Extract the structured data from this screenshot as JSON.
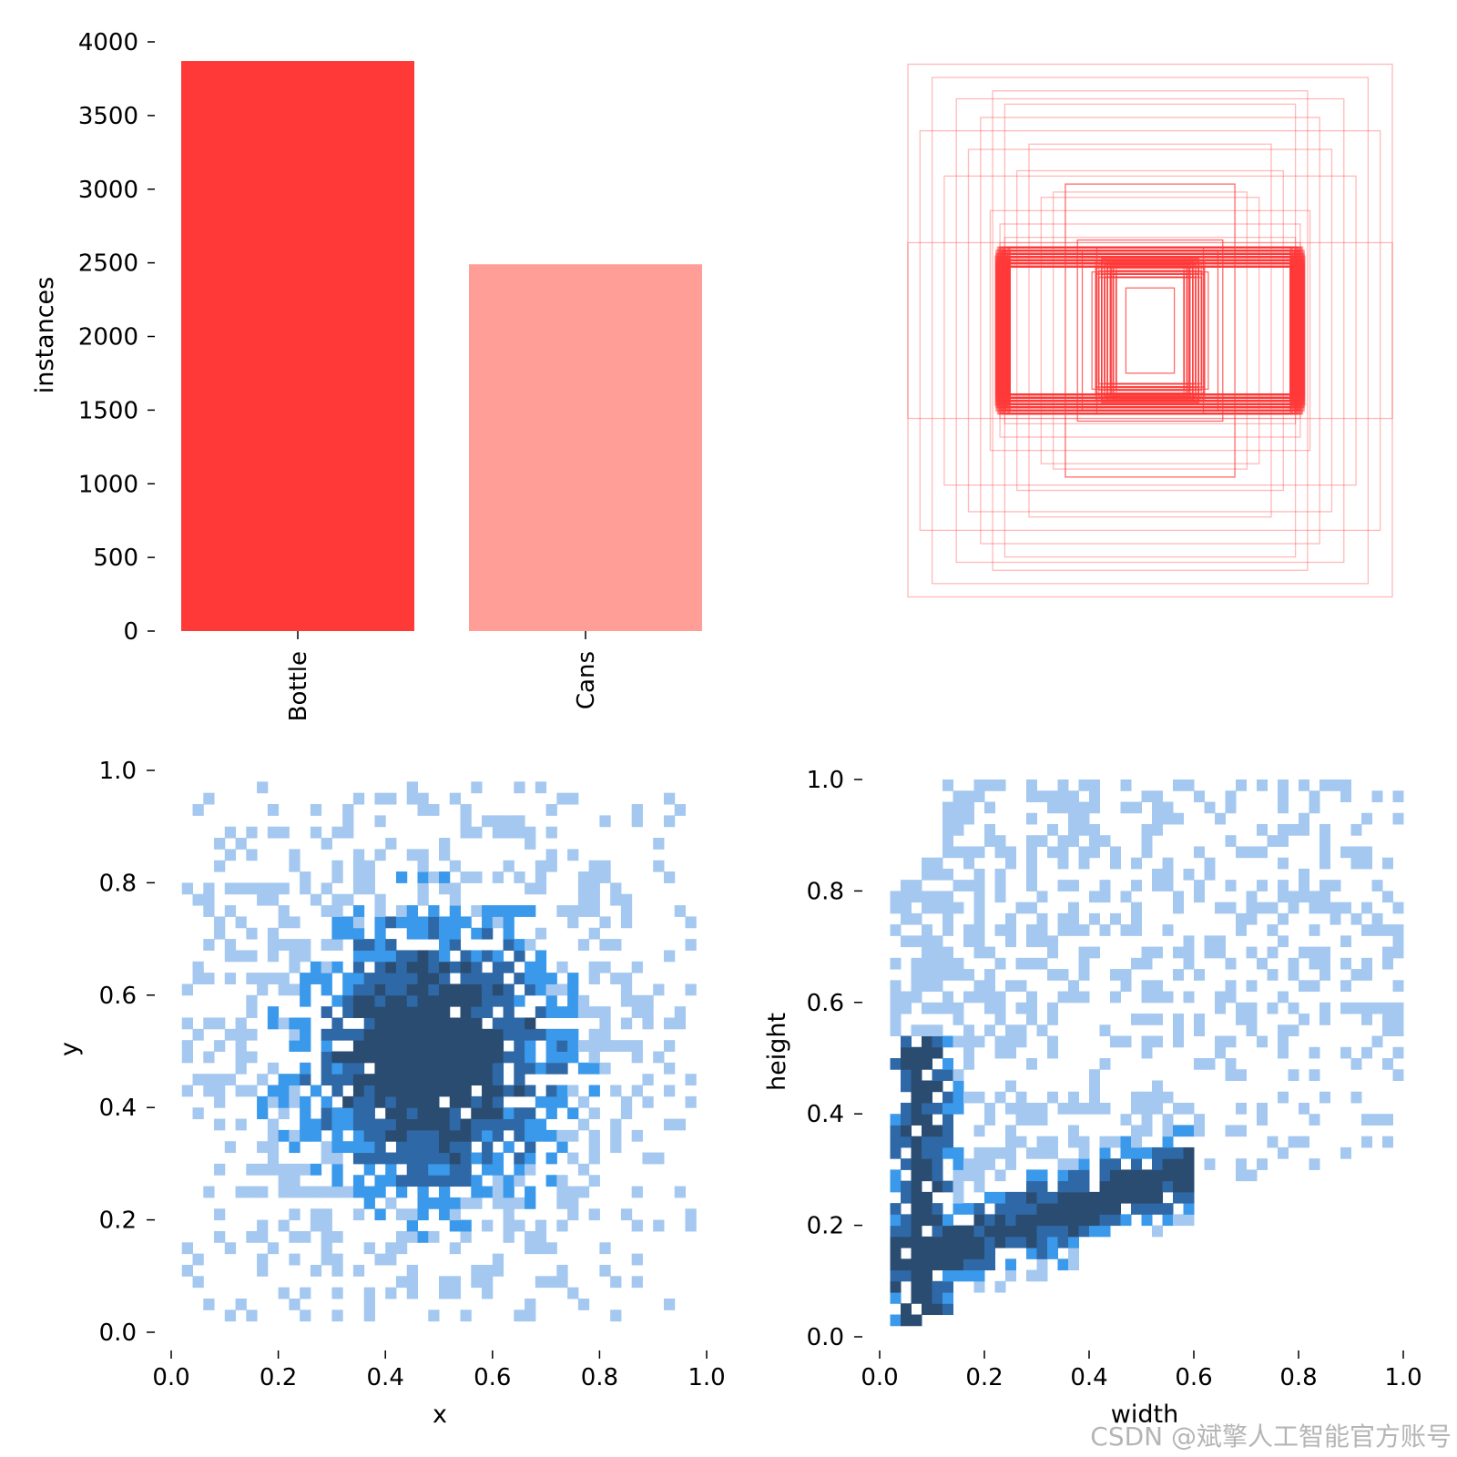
{
  "chart_data": [
    {
      "type": "bar",
      "categories": [
        "Bottle",
        "Cans"
      ],
      "values": [
        3870,
        2490
      ],
      "colors": [
        "#ff3838",
        "#ff9d97"
      ],
      "ylabel": "instances",
      "xlabel": "",
      "ylim": [
        0,
        4000
      ],
      "yticks": [
        0,
        500,
        1000,
        1500,
        2000,
        2500,
        3000,
        3500,
        4000
      ]
    },
    {
      "type": "boxes",
      "color": "#ff3838",
      "boxes_w_h": [
        [
          0.24,
          0.22
        ],
        [
          0.62,
          0.33
        ],
        [
          0.22,
          0.31
        ],
        [
          0.6,
          0.35
        ],
        [
          0.2,
          0.27
        ],
        [
          0.1,
          0.16
        ],
        [
          0.16,
          0.24
        ],
        [
          0.3,
          0.34
        ],
        [
          0.45,
          0.5
        ],
        [
          0.55,
          0.6
        ],
        [
          0.7,
          0.8
        ],
        [
          0.8,
          0.87
        ],
        [
          1.0,
          1.0
        ],
        [
          0.9,
          0.95
        ],
        [
          0.5,
          0.7
        ],
        [
          0.65,
          0.9
        ],
        [
          0.75,
          0.68
        ],
        [
          0.35,
          0.55
        ],
        [
          0.85,
          0.58
        ],
        [
          1.0,
          0.33
        ],
        [
          0.62,
          0.4
        ],
        [
          0.58,
          0.26
        ],
        [
          0.64,
          0.28
        ],
        [
          0.66,
          0.45
        ],
        [
          0.4,
          0.52
        ],
        [
          0.95,
          0.75
        ],
        [
          0.6,
          0.85
        ],
        [
          0.28,
          0.3
        ]
      ]
    },
    {
      "type": "heatmap",
      "xlabel": "x",
      "ylabel": "y",
      "xlim": [
        0,
        1
      ],
      "ylim": [
        0,
        1
      ],
      "xticks": [
        "0.0",
        "0.2",
        "0.4",
        "0.6",
        "0.8",
        "1.0"
      ],
      "yticks": [
        "0.0",
        "0.2",
        "0.4",
        "0.6",
        "0.8",
        "1.0"
      ],
      "palette": [
        "#a4c8f0",
        "#3a99ea",
        "#2f68a6",
        "#2a4c70"
      ]
    },
    {
      "type": "heatmap",
      "xlabel": "width",
      "ylabel": "height",
      "xlim": [
        0,
        1
      ],
      "ylim": [
        0,
        1
      ],
      "xticks": [
        "0.0",
        "0.2",
        "0.4",
        "0.6",
        "0.8",
        "1.0"
      ],
      "yticks": [
        "0.0",
        "0.2",
        "0.4",
        "0.6",
        "0.8",
        "1.0"
      ],
      "palette": [
        "#a4c8f0",
        "#3a99ea",
        "#2f68a6",
        "#2a4c70"
      ]
    }
  ],
  "watermark": "CSDN @斌擎人工智能官方账号"
}
